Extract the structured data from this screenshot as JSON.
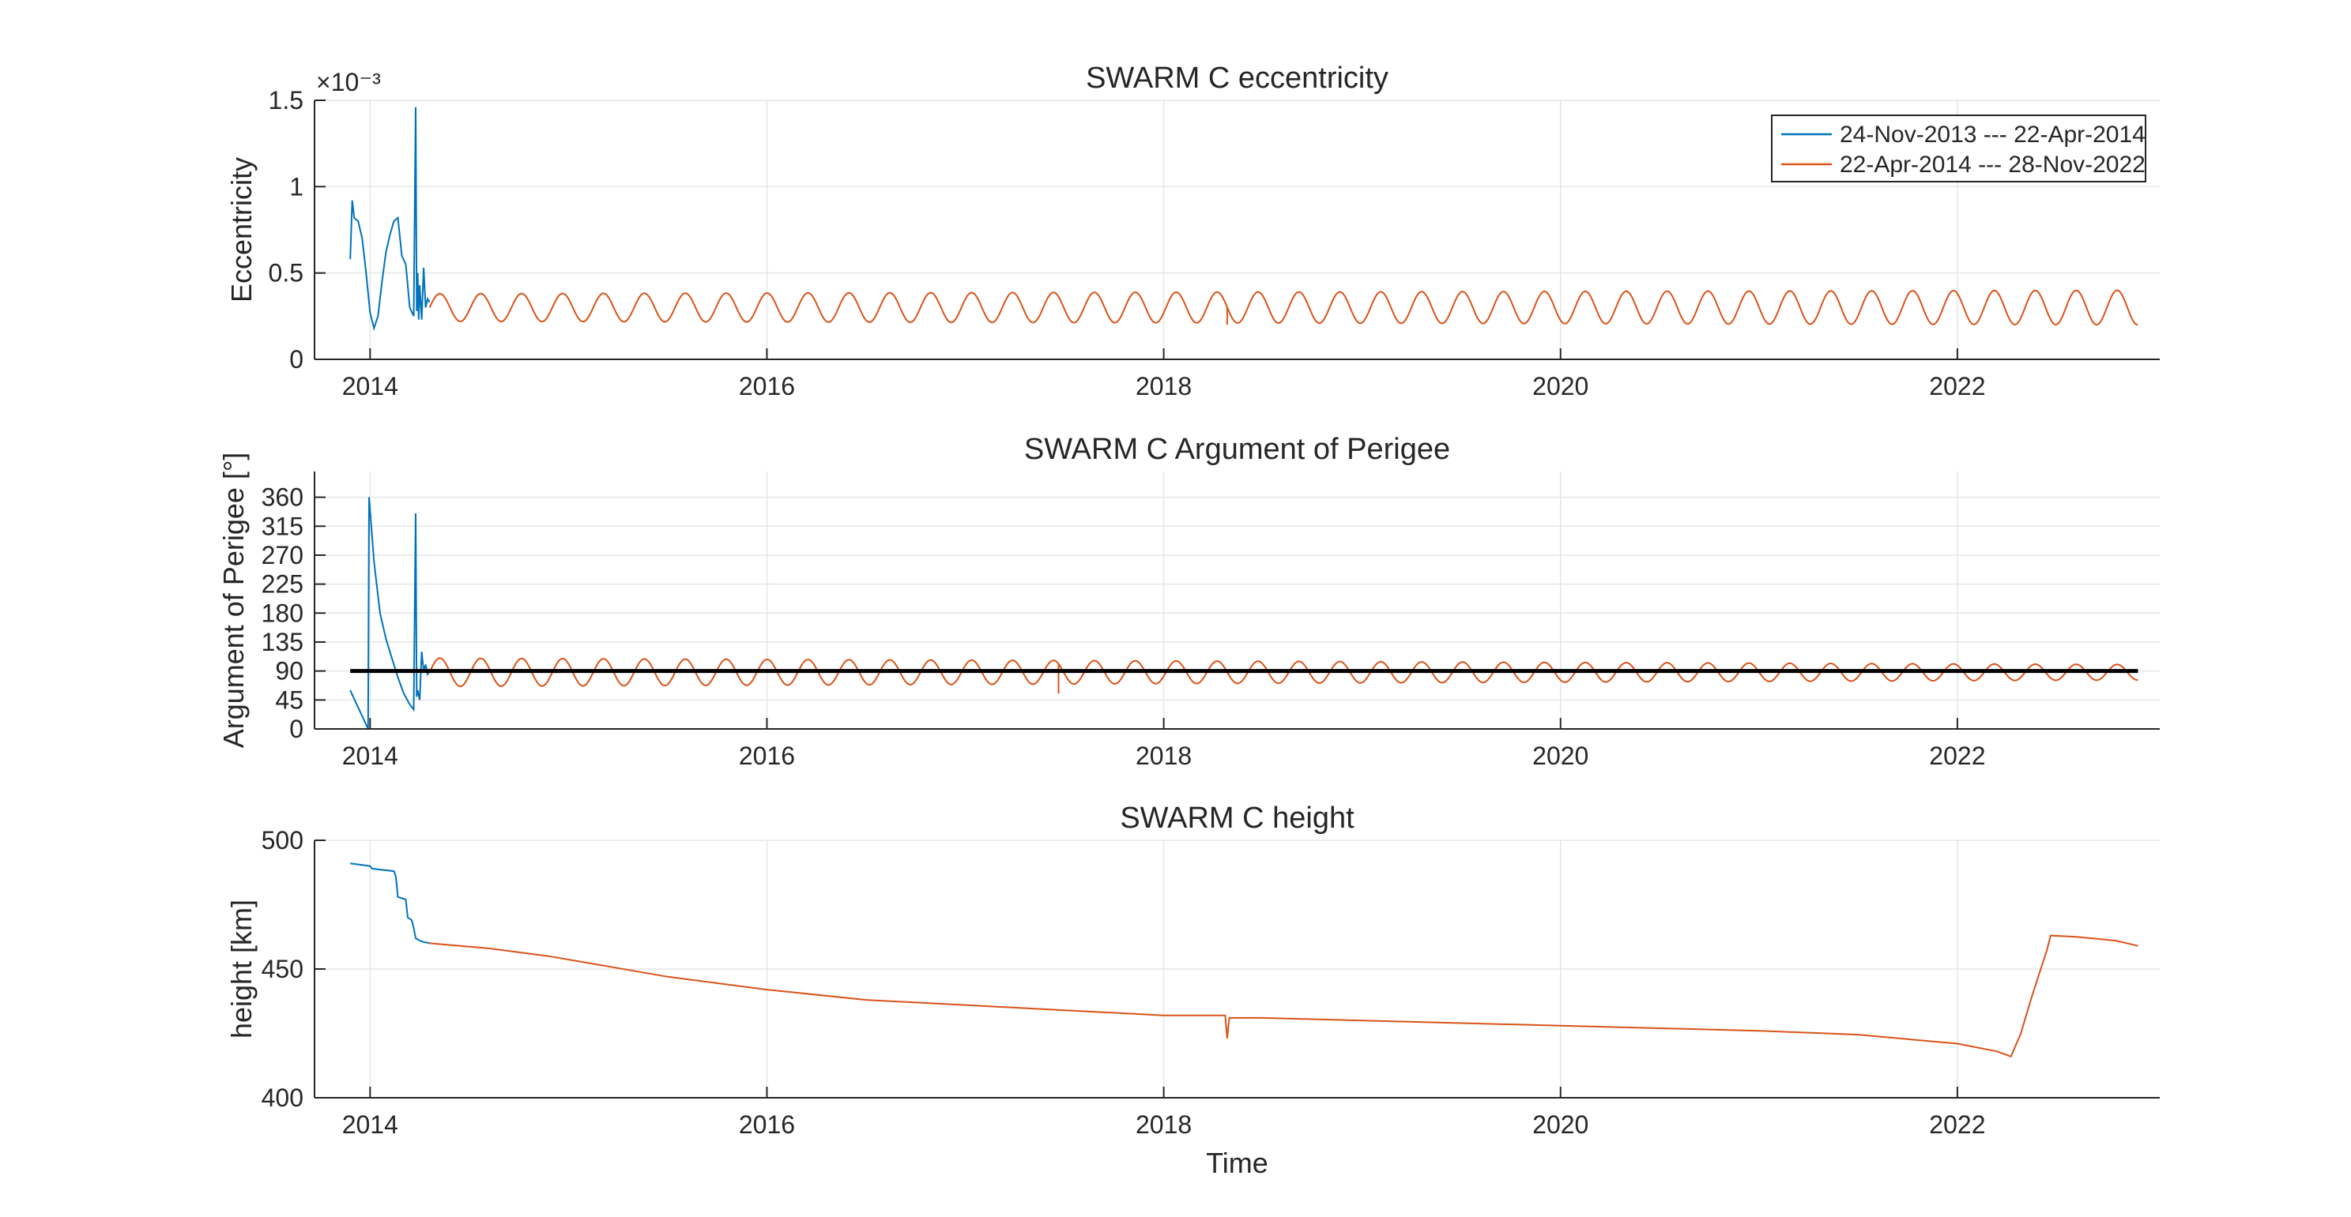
{
  "figure": {
    "background": "#ffffff"
  },
  "colors": {
    "series_1": "#0072BD",
    "series_2": "#D95319",
    "reference": "#000000",
    "axis": "#262626",
    "grid": "#E6E6E6"
  },
  "shared_x": {
    "xlabel": "Time",
    "xlim": [
      2013.72,
      2023.02
    ],
    "ticks": [
      2014,
      2016,
      2018,
      2020,
      2022
    ],
    "tick_labels": [
      "2014",
      "2016",
      "2018",
      "2020",
      "2022"
    ]
  },
  "legend": {
    "placement": "top-right",
    "entries": [
      "24-Nov-2013 --- 22-Apr-2014",
      "22-Apr-2014 --- 28-Nov-2022"
    ]
  },
  "chart_data": [
    {
      "type": "line",
      "title": "SWARM C eccentricity",
      "xlabel": "",
      "ylabel": "Eccentricity",
      "ylim": [
        0,
        1.5
      ],
      "y_exponent_label": "×10⁻³",
      "y_multiplier": 0.001,
      "yticks": [
        0,
        0.5,
        1,
        1.5
      ],
      "ytick_labels": [
        "0",
        "0.5",
        "1",
        "1.5"
      ],
      "grid": true,
      "legend": "top-right",
      "series": [
        {
          "name": "24-Nov-2013 --- 22-Apr-2014",
          "x": [
            2013.9,
            2013.91,
            2013.92,
            2013.94,
            2013.96,
            2013.98,
            2014.0,
            2014.02,
            2014.04,
            2014.06,
            2014.08,
            2014.1,
            2014.12,
            2014.14,
            2014.16,
            2014.18,
            2014.2,
            2014.22,
            2014.23,
            2014.235,
            2014.24,
            2014.245,
            2014.25,
            2014.26,
            2014.27,
            2014.28,
            2014.29,
            2014.3
          ],
          "y": [
            0.58,
            0.92,
            0.82,
            0.8,
            0.7,
            0.5,
            0.27,
            0.18,
            0.25,
            0.45,
            0.62,
            0.72,
            0.8,
            0.82,
            0.6,
            0.55,
            0.3,
            0.25,
            1.46,
            0.28,
            0.5,
            0.23,
            0.43,
            0.23,
            0.53,
            0.3,
            0.35,
            0.33
          ]
        },
        {
          "name": "22-Apr-2014 --- 28-Nov-2022",
          "model": "sinusoid",
          "x_start": 2014.3,
          "x_end": 2022.91,
          "center": 0.3,
          "amplitude_early": 0.08,
          "amplitude_late": 0.1,
          "cycles_per_year": 4.85,
          "spikes": [
            {
              "x": 2018.32,
              "y": 0.2
            }
          ]
        }
      ]
    },
    {
      "type": "line",
      "title": "SWARM C Argument of Perigee",
      "xlabel": "",
      "ylabel": "Argument of Perigee [°]",
      "ylim": [
        0,
        400
      ],
      "yticks": [
        0,
        45,
        90,
        135,
        180,
        225,
        270,
        315,
        360
      ],
      "ytick_labels": [
        "0",
        "45",
        "90",
        "135",
        "180",
        "225",
        "270",
        "315",
        "360"
      ],
      "grid": true,
      "reference_line": {
        "y": 90,
        "x_start": 2013.9,
        "x_end": 2022.91
      },
      "series": [
        {
          "name": "24-Nov-2013 --- 22-Apr-2014",
          "x": [
            2013.9,
            2013.93,
            2013.96,
            2013.99,
            2013.995,
            2014.0,
            2014.02,
            2014.05,
            2014.08,
            2014.11,
            2014.14,
            2014.17,
            2014.2,
            2014.22,
            2014.23,
            2014.235,
            2014.24,
            2014.25,
            2014.26,
            2014.27,
            2014.28,
            2014.29,
            2014.3
          ],
          "y": [
            60,
            40,
            20,
            0,
            360,
            340,
            260,
            180,
            140,
            110,
            80,
            55,
            38,
            30,
            335,
            50,
            60,
            45,
            120,
            90,
            100,
            85,
            90
          ]
        },
        {
          "name": "22-Apr-2014 --- 28-Nov-2022",
          "model": "sinusoid",
          "x_start": 2014.3,
          "x_end": 2022.91,
          "center": 88,
          "amplitude_early": 22,
          "amplitude_late": 12,
          "cycles_per_year": 4.85,
          "spikes": [
            {
              "x": 2017.47,
              "y": 55
            }
          ]
        }
      ]
    },
    {
      "type": "line",
      "title": "SWARM C height",
      "xlabel": "Time",
      "ylabel": "height [km]",
      "ylim": [
        400,
        500
      ],
      "yticks": [
        400,
        450,
        500
      ],
      "ytick_labels": [
        "400",
        "450",
        "500"
      ],
      "grid": true,
      "series": [
        {
          "name": "24-Nov-2013 --- 22-Apr-2014",
          "x": [
            2013.9,
            2014.0,
            2014.01,
            2014.12,
            2014.13,
            2014.14,
            2014.18,
            2014.19,
            2014.21,
            2014.22,
            2014.23,
            2014.25,
            2014.27,
            2014.29,
            2014.3
          ],
          "y": [
            491,
            490,
            489,
            488,
            486,
            478,
            477,
            470,
            469,
            466,
            462,
            461,
            460.5,
            460.2,
            460
          ]
        },
        {
          "name": "22-Apr-2014 --- 28-Nov-2022",
          "x": [
            2014.3,
            2014.6,
            2014.9,
            2015.2,
            2015.5,
            2016.0,
            2016.5,
            2017.0,
            2017.5,
            2018.0,
            2018.31,
            2018.32,
            2018.33,
            2018.5,
            2019.0,
            2019.5,
            2020.0,
            2020.5,
            2021.0,
            2021.5,
            2022.0,
            2022.2,
            2022.27,
            2022.32,
            2022.37,
            2022.42,
            2022.45,
            2022.47,
            2022.6,
            2022.8,
            2022.91
          ],
          "y": [
            460,
            458,
            455,
            451,
            447,
            442,
            438,
            436,
            434,
            432,
            432,
            423,
            431,
            431,
            430,
            429,
            428,
            427,
            426,
            424.5,
            421,
            418,
            416,
            425,
            438,
            450,
            457,
            463,
            462.5,
            461,
            459
          ]
        }
      ]
    }
  ]
}
